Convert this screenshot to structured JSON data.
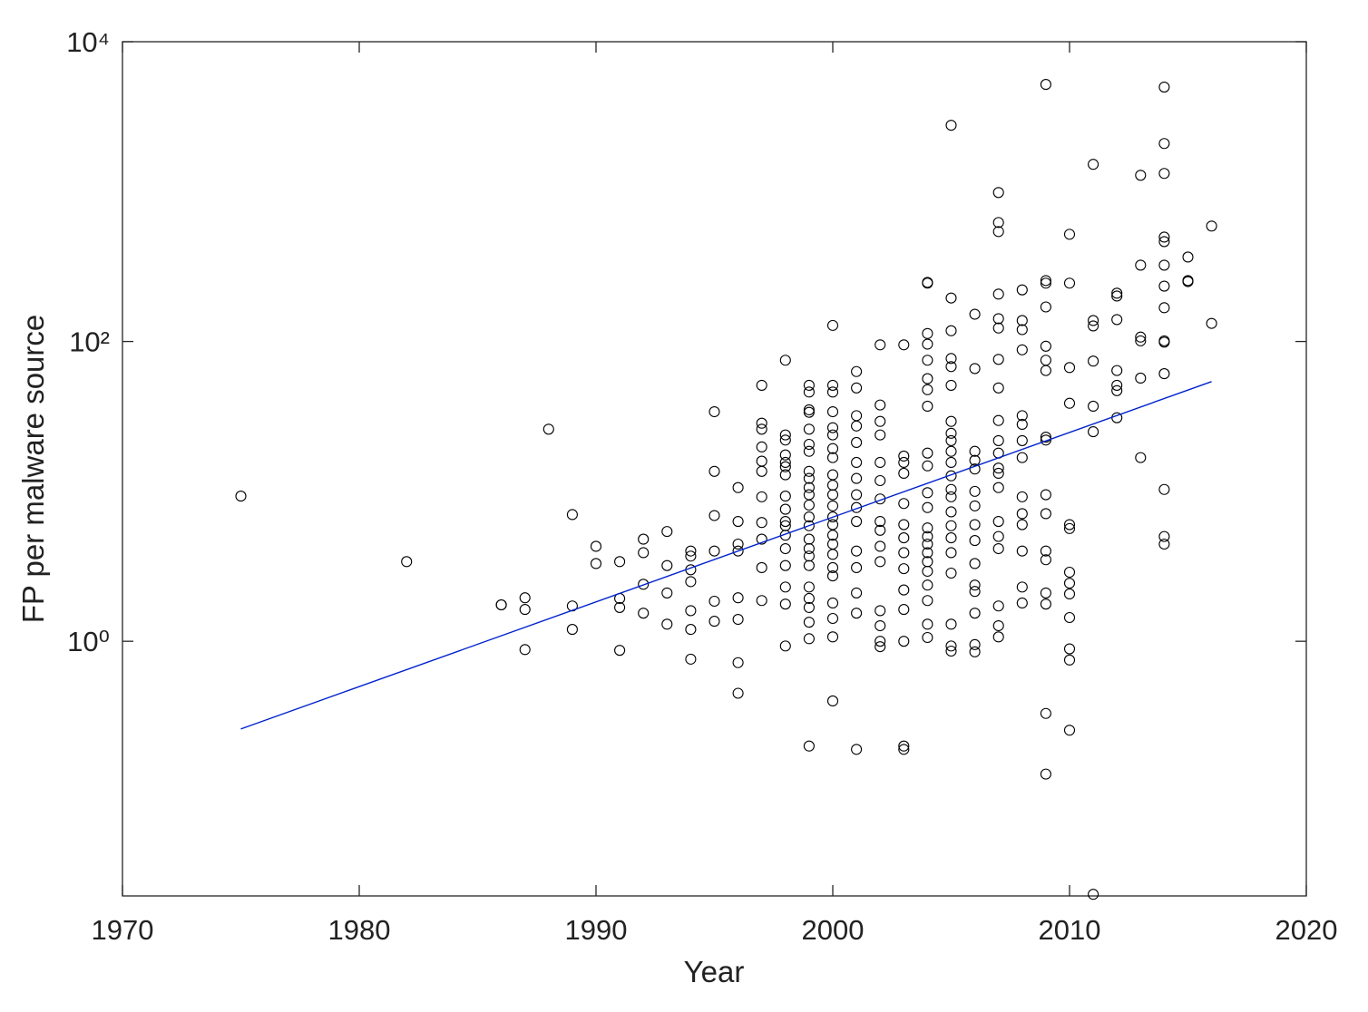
{
  "chart_data": {
    "type": "scatter",
    "x_label": "Year",
    "y_label": "FP per malware source",
    "xlim": [
      1970,
      2020
    ],
    "xticks": [
      1970,
      1980,
      1990,
      2000,
      2010,
      2020
    ],
    "ylim": [
      0.02,
      10000
    ],
    "yticks": [
      {
        "value": 1,
        "label": "10⁰"
      },
      {
        "value": 100,
        "label": "10²"
      },
      {
        "value": 10000,
        "label": "10⁴"
      }
    ],
    "yscale": "log",
    "grid": false,
    "color": "#000000",
    "x": [
      1975,
      1982,
      1986,
      1986,
      1987,
      1987,
      1987,
      1988,
      1989,
      1989,
      1989,
      1990,
      1990,
      1991,
      1991,
      1991,
      1991,
      1992,
      1992,
      1992,
      1992,
      1993,
      1993,
      1993,
      1993,
      1994,
      1994,
      1994,
      1994,
      1994,
      1994,
      1994,
      1995,
      1995,
      1995,
      1995,
      1995,
      1995,
      1996,
      1996,
      1996,
      1996,
      1996,
      1996,
      1996,
      1996,
      1997,
      1997,
      1997,
      1997,
      1997,
      1997,
      1997,
      1997,
      1997,
      1997,
      1997,
      1998,
      1998,
      1998,
      1998,
      1998,
      1998,
      1998,
      1998,
      1998,
      1998,
      1998,
      1998,
      1998,
      1998,
      1998,
      1998,
      1998,
      1999,
      1999,
      1999,
      1999,
      1999,
      1999,
      1999,
      1999,
      1999,
      1999,
      1999,
      1999,
      1999,
      1999,
      1999,
      1999,
      1999,
      1999,
      1999,
      1999,
      1999,
      1999,
      1999,
      1999,
      2000,
      2000,
      2000,
      2000,
      2000,
      2000,
      2000,
      2000,
      2000,
      2000,
      2000,
      2000,
      2000,
      2000,
      2000,
      2000,
      2000,
      2000,
      2000,
      2000,
      2000,
      2000,
      2000,
      2001,
      2001,
      2001,
      2001,
      2001,
      2001,
      2001,
      2001,
      2001,
      2001,
      2001,
      2001,
      2001,
      2001,
      2001,
      2002,
      2002,
      2002,
      2002,
      2002,
      2002,
      2002,
      2002,
      2002,
      2002,
      2002,
      2002,
      2002,
      2002,
      2002,
      2003,
      2003,
      2003,
      2003,
      2003,
      2003,
      2003,
      2003,
      2003,
      2003,
      2003,
      2003,
      2003,
      2003,
      2004,
      2004,
      2004,
      2004,
      2004,
      2004,
      2004,
      2004,
      2004,
      2004,
      2004,
      2004,
      2004,
      2004,
      2004,
      2004,
      2004,
      2004,
      2004,
      2004,
      2004,
      2004,
      2005,
      2005,
      2005,
      2005,
      2005,
      2005,
      2005,
      2005,
      2005,
      2005,
      2005,
      2005,
      2005,
      2005,
      2005,
      2005,
      2005,
      2005,
      2005,
      2005,
      2005,
      2005,
      2006,
      2006,
      2006,
      2006,
      2006,
      2006,
      2006,
      2006,
      2006,
      2006,
      2006,
      2006,
      2006,
      2006,
      2006,
      2007,
      2007,
      2007,
      2007,
      2007,
      2007,
      2007,
      2007,
      2007,
      2007,
      2007,
      2007,
      2007,
      2007,
      2007,
      2007,
      2007,
      2007,
      2007,
      2007,
      2008,
      2008,
      2008,
      2008,
      2008,
      2008,
      2008,
      2008,
      2008,
      2008,
      2008,
      2008,
      2008,
      2008,
      2009,
      2009,
      2009,
      2009,
      2009,
      2009,
      2009,
      2009,
      2009,
      2009,
      2009,
      2009,
      2009,
      2009,
      2009,
      2009,
      2009,
      2010,
      2010,
      2010,
      2010,
      2010,
      2010,
      2010,
      2010,
      2010,
      2010,
      2010,
      2010,
      2010,
      2011,
      2011,
      2011,
      2011,
      2011,
      2011,
      2011,
      2012,
      2012,
      2012,
      2012,
      2012,
      2012,
      2012,
      2013,
      2013,
      2013,
      2013,
      2013,
      2013,
      2014,
      2014,
      2014,
      2014,
      2014,
      2014,
      2014,
      2014,
      2014,
      2014,
      2014,
      2014,
      2014,
      2014,
      2015,
      2015,
      2015,
      2016,
      2016
    ],
    "values": [
      9.3,
      3.4,
      1.75,
      1.75,
      1.95,
      1.63,
      0.88,
      26,
      7.0,
      1.72,
      1.2,
      4.3,
      3.3,
      3.4,
      1.93,
      1.68,
      0.87,
      4.8,
      3.9,
      2.4,
      1.54,
      5.4,
      3.2,
      2.1,
      1.3,
      4.0,
      3.7,
      3.0,
      2.5,
      1.6,
      1.2,
      0.76,
      34,
      13.6,
      6.9,
      4.0,
      1.85,
      1.36,
      10.6,
      6.3,
      4.45,
      4.0,
      1.95,
      1.4,
      0.72,
      0.45,
      51,
      28.5,
      26,
      19.8,
      15.9,
      13.6,
      9.2,
      6.2,
      4.8,
      3.1,
      1.87,
      75,
      23.8,
      22,
      17.5,
      15.6,
      14.6,
      12.9,
      9.3,
      7.6,
      6.3,
      5.9,
      5.1,
      4.15,
      3.2,
      2.3,
      1.77,
      0.93,
      51,
      46,
      35,
      33.7,
      26,
      20.6,
      18.5,
      13.6,
      12.2,
      10.6,
      9.5,
      8.1,
      6.75,
      5.9,
      4.8,
      4.15,
      3.7,
      3.2,
      2.3,
      1.93,
      1.68,
      1.34,
      1.04,
      0.2,
      128,
      51,
      46,
      34,
      26.6,
      23.8,
      19.3,
      16.8,
      12.9,
      11,
      9.5,
      8.0,
      6.75,
      6.0,
      5.1,
      4.45,
      3.8,
      3.1,
      2.73,
      1.8,
      1.42,
      1.07,
      0.4,
      63,
      49,
      32,
      27.3,
      21.2,
      15.6,
      12.2,
      9.5,
      7.8,
      6.3,
      4.0,
      3.1,
      2.1,
      1.54,
      0.19,
      95,
      37.7,
      29.3,
      23.8,
      15.6,
      11.8,
      8.9,
      6.3,
      5.5,
      4.3,
      3.4,
      1.6,
      1.27,
      1.0,
      0.92,
      95,
      17.2,
      15.6,
      13.2,
      8.3,
      6.0,
      4.9,
      3.9,
      3.05,
      2.2,
      1.63,
      1.0,
      0.2,
      0.19,
      248,
      245,
      113,
      96,
      75,
      56.5,
      47.7,
      37,
      18,
      14.8,
      9.8,
      7.8,
      5.7,
      5.0,
      4.45,
      3.9,
      3.4,
      2.93,
      2.37,
      1.87,
      1.3,
      1.06,
      2770,
      195,
      118,
      77,
      68,
      51,
      29.3,
      24.4,
      21.8,
      18.5,
      15.6,
      12.7,
      10.3,
      9.2,
      7.3,
      5.9,
      4.9,
      3.9,
      2.85,
      1.3,
      0.93,
      0.86,
      152,
      66,
      18.5,
      16.1,
      14.1,
      10,
      8.0,
      6.0,
      4.7,
      3.3,
      2.37,
      2.15,
      1.54,
      0.95,
      0.85,
      986,
      622,
      541,
      207,
      142,
      123,
      76,
      49,
      29.7,
      21.8,
      18,
      14.3,
      13.2,
      10.6,
      6.3,
      5.0,
      4.15,
      1.72,
      1.27,
      1.07,
      221,
      138,
      120,
      88,
      32,
      28,
      21.8,
      16.8,
      9.2,
      7.1,
      6.0,
      4.0,
      2.3,
      1.8,
      5190,
      255,
      245,
      170,
      93,
      75,
      64,
      23,
      22,
      9.5,
      7.1,
      4.0,
      3.5,
      2.1,
      1.77,
      0.33,
      0.13,
      519,
      245,
      67,
      38.7,
      6.0,
      5.65,
      2.89,
      2.44,
      2.07,
      1.44,
      0.89,
      0.75,
      0.255,
      1520,
      138,
      127,
      74,
      37,
      25,
      0.0205,
      210,
      201,
      140,
      64,
      51,
      47,
      31,
      1285,
      323,
      107,
      101,
      57,
      16.8,
      4980,
      2094,
      1322,
      497,
      464,
      323,
      234,
      168,
      101,
      99,
      61,
      10.3,
      5.0,
      4.45,
      366,
      255,
      251,
      589,
      132
    ],
    "fit": {
      "type": "line",
      "color": "#0022cc",
      "x": [
        1975,
        2016
      ],
      "values": [
        0.26,
        54
      ]
    }
  }
}
